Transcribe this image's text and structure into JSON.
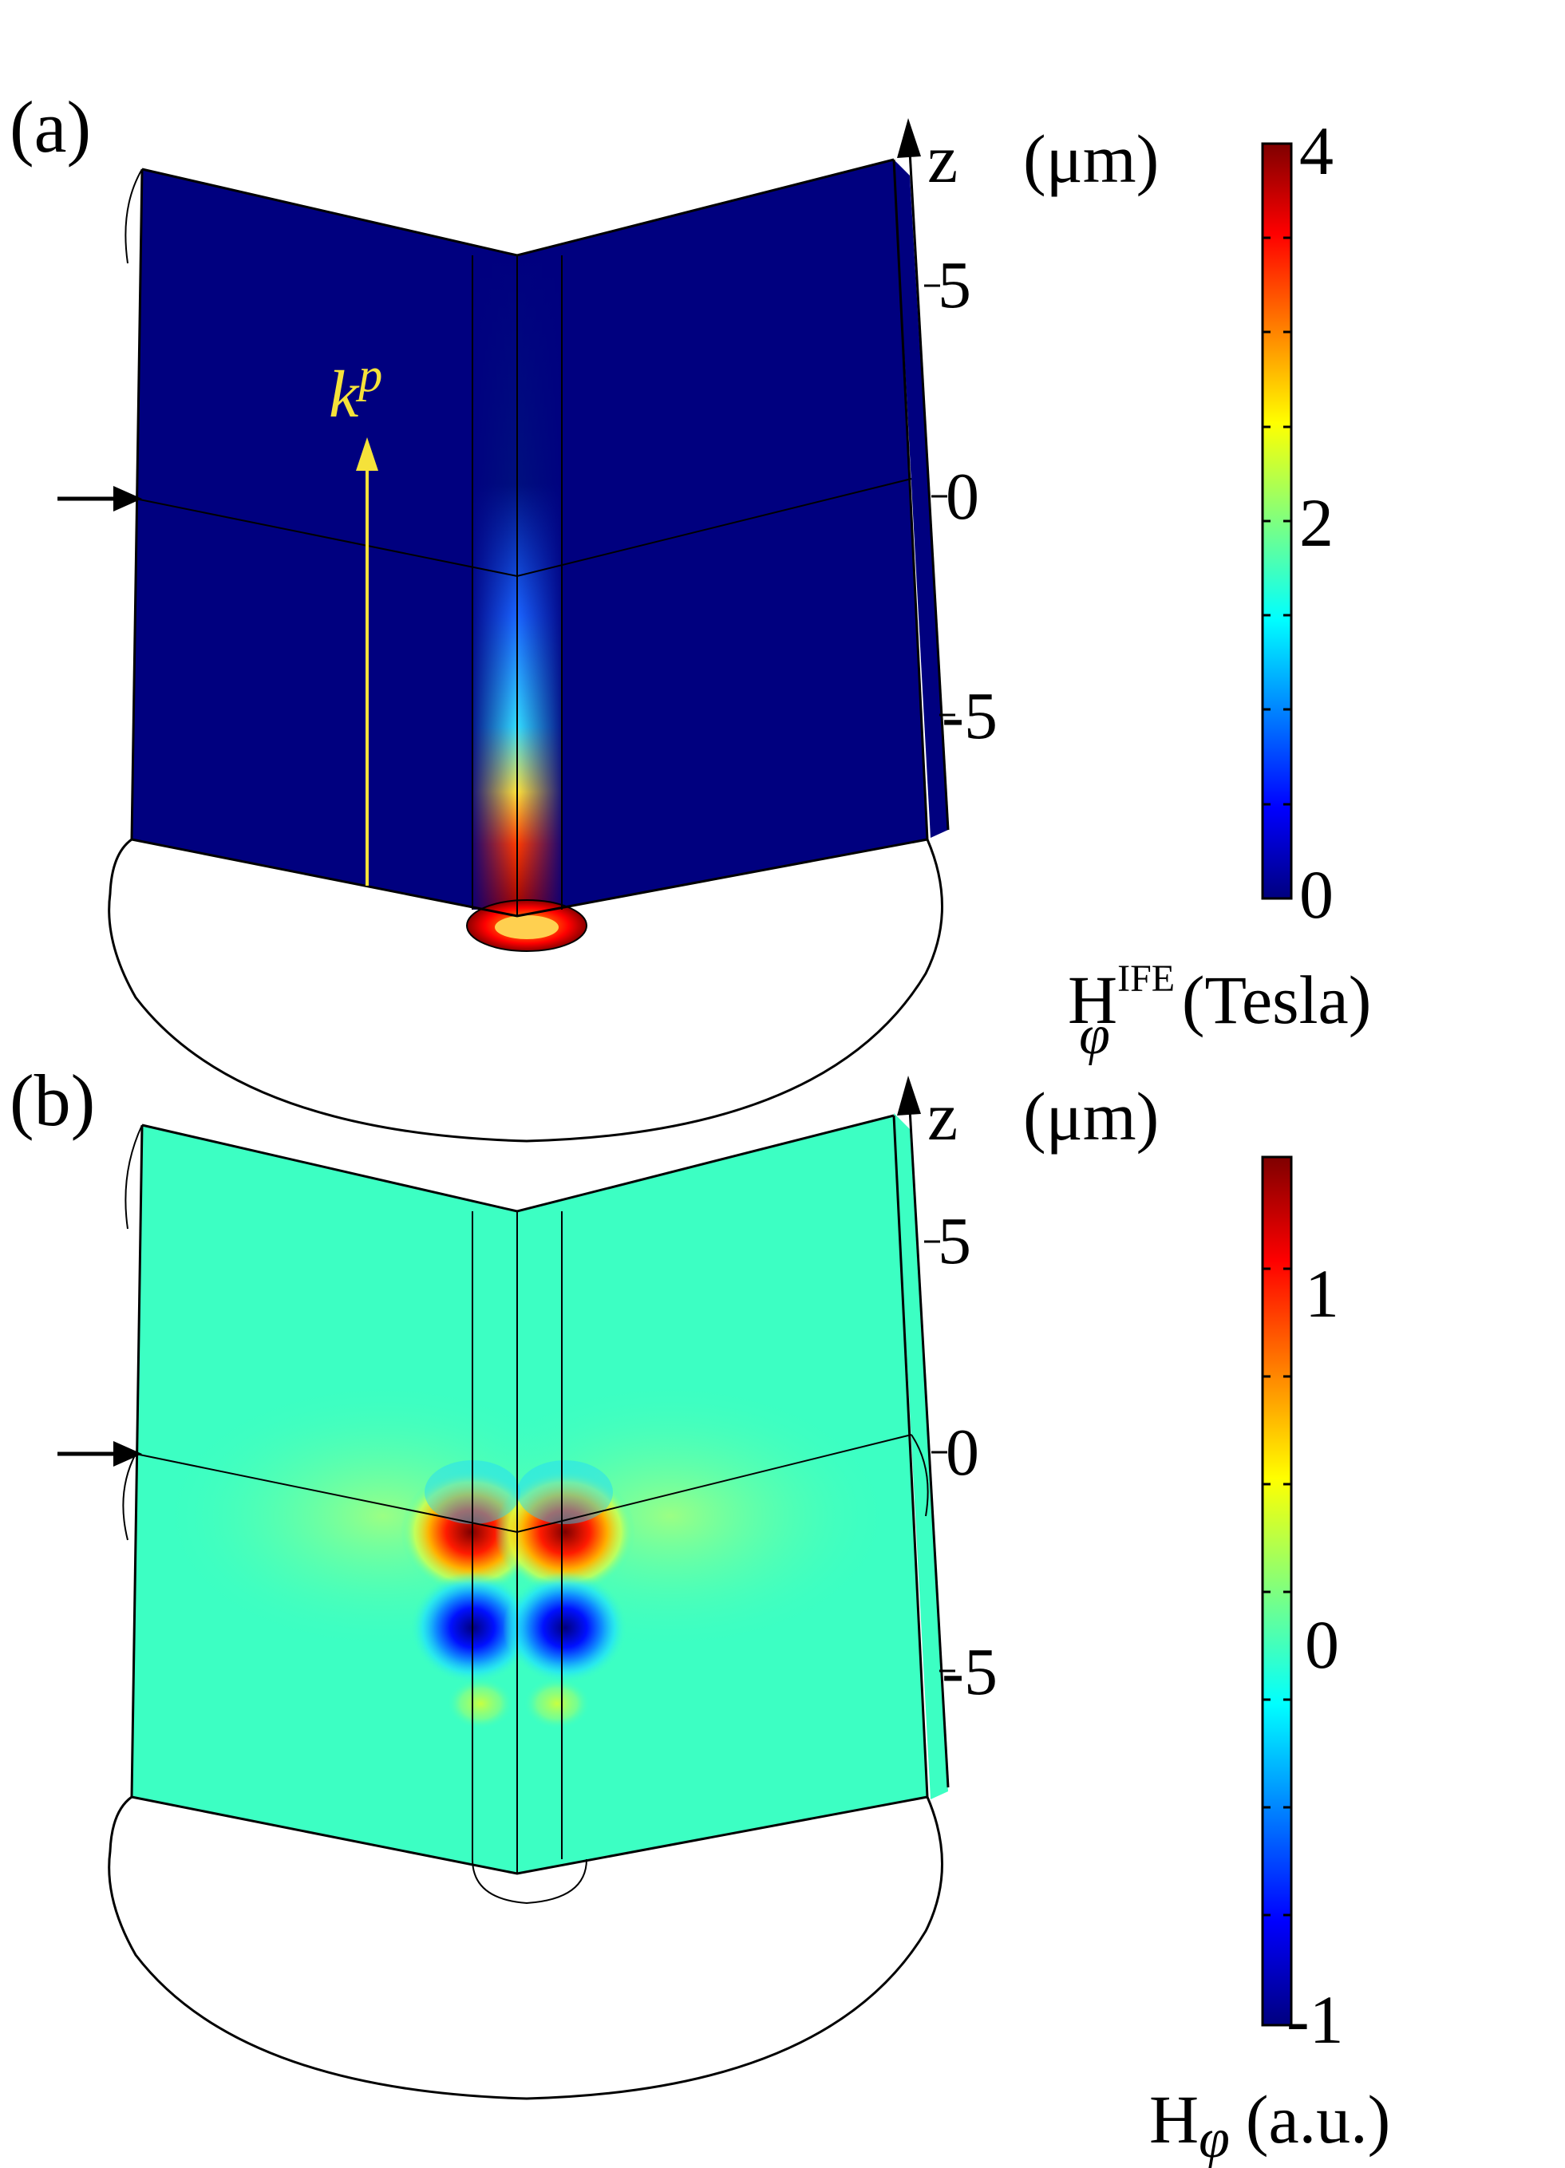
{
  "panels": [
    {
      "label": "(a)",
      "axis": {
        "name": "z",
        "unit": "(μm)",
        "ticks": [
          "5",
          "0",
          "-5"
        ]
      },
      "arrow_label_base": "k",
      "arrow_label_sup": "p",
      "colorbar": {
        "max_label": "4",
        "mid_label": "2",
        "min_label": "0",
        "title_main": "H",
        "title_sub": "φ",
        "title_sup": "IFE",
        "title_unit": "(Tesla)",
        "colormap": "jet",
        "range": [
          0,
          4
        ]
      },
      "colors": {
        "background_field": "#00007f"
      }
    },
    {
      "label": "(b)",
      "axis": {
        "name": "z",
        "unit": "(μm)",
        "ticks": [
          "5",
          "0",
          "-5"
        ]
      },
      "colorbar": {
        "max_label": "1",
        "mid_label": "0",
        "min_label": "-1",
        "title_main": "H",
        "title_sub": "φ",
        "title_unit": "(a.u.)",
        "colormap": "jet",
        "range": [
          -1,
          1
        ]
      },
      "colors": {
        "background_field": "#3cffc3"
      }
    }
  ]
}
